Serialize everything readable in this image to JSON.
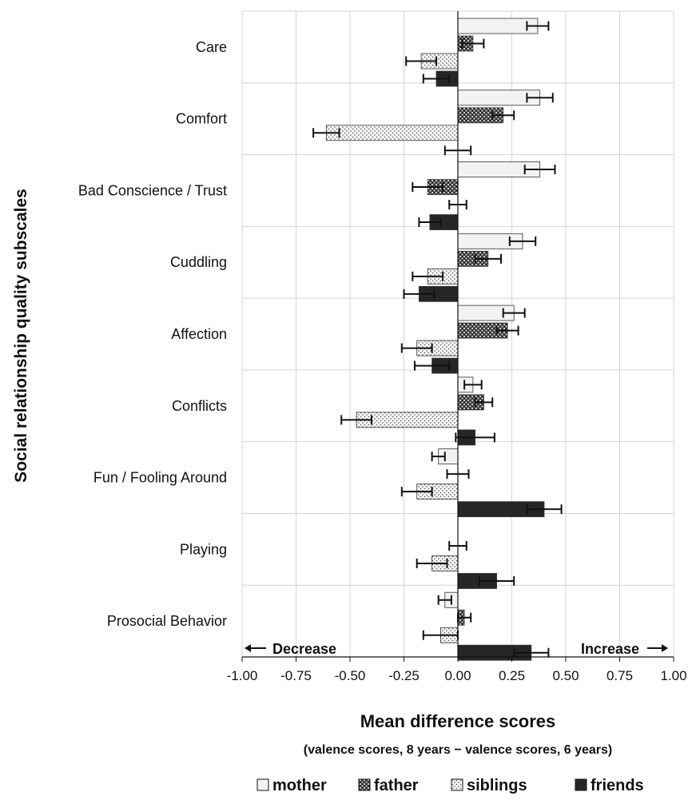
{
  "chart_data": {
    "type": "bar",
    "orientation": "horizontal",
    "categories": [
      "Care",
      "Comfort",
      "Bad Conscience / Trust",
      "Cuddling",
      "Affection",
      "Conflicts",
      "Fun / Fooling Around",
      "Playing",
      "Prosocial Behavior"
    ],
    "series": [
      {
        "name": "mother",
        "values": [
          0.37,
          0.38,
          0.38,
          0.3,
          0.26,
          0.07,
          -0.09,
          null,
          -0.06
        ],
        "errors": [
          0.05,
          0.06,
          0.07,
          0.06,
          0.05,
          0.04,
          0.03,
          null,
          0.03
        ],
        "color": "#f2f2f2",
        "pattern": "plain"
      },
      {
        "name": "father",
        "values": [
          0.07,
          0.21,
          -0.14,
          0.14,
          0.23,
          0.12,
          null,
          null,
          0.03
        ],
        "errors": [
          0.05,
          0.05,
          0.07,
          0.06,
          0.05,
          0.04,
          0.05,
          0.04,
          0.03
        ],
        "color": "#3a3a3a",
        "pattern": "crosshatch"
      },
      {
        "name": "siblings",
        "values": [
          -0.17,
          -0.61,
          null,
          -0.14,
          -0.19,
          -0.47,
          -0.19,
          -0.12,
          -0.08
        ],
        "errors": [
          0.07,
          0.06,
          0.04,
          0.07,
          0.07,
          0.07,
          0.07,
          0.07,
          0.08
        ],
        "color": "#e6e6e6",
        "pattern": "dots"
      },
      {
        "name": "friends",
        "values": [
          -0.1,
          null,
          -0.13,
          -0.18,
          -0.12,
          0.08,
          0.4,
          0.18,
          0.34
        ],
        "errors": [
          0.06,
          0.06,
          0.05,
          0.07,
          0.08,
          0.09,
          0.08,
          0.08,
          0.08
        ],
        "color": "#262626",
        "pattern": "solid"
      }
    ],
    "xlim": [
      -1.0,
      1.0
    ],
    "xticks": [
      "-1.00",
      "-0.75",
      "-0.50",
      "-0.25",
      "0.00",
      "0.25",
      "0.50",
      "0.75",
      "1.00"
    ],
    "xlabel": "Mean difference scores",
    "xlabel_sub": "(valence scores, 8 years − valence scores, 6 years)",
    "ylabel": "Social relationship quality subscales",
    "annotations": {
      "left": "Decrease",
      "right": "Increase"
    },
    "grid": true,
    "legend_position": "bottom"
  }
}
